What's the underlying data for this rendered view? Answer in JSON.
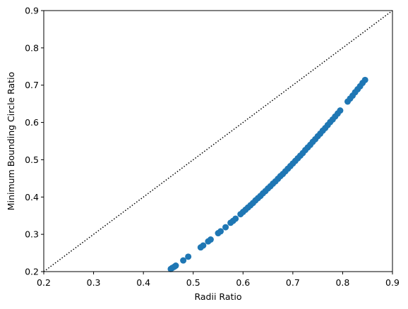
{
  "chart_data": {
    "type": "scatter",
    "xlabel": "Radii Ratio",
    "ylabel": "Minimum Bounding Circle Ratio",
    "xlim": [
      0.2,
      0.9
    ],
    "ylim": [
      0.2,
      0.9
    ],
    "xticks": [
      0.2,
      0.3,
      0.4,
      0.5,
      0.6,
      0.7,
      0.8,
      0.9
    ],
    "yticks": [
      0.2,
      0.3,
      0.4,
      0.5,
      0.6,
      0.7,
      0.8,
      0.9
    ],
    "grid": false,
    "color": "#1f77b4",
    "x": [
      0.455,
      0.458,
      0.462,
      0.465,
      0.48,
      0.49,
      0.515,
      0.52,
      0.53,
      0.535,
      0.55,
      0.555,
      0.565,
      0.575,
      0.58,
      0.585,
      0.595,
      0.6,
      0.605,
      0.61,
      0.615,
      0.62,
      0.625,
      0.63,
      0.635,
      0.64,
      0.645,
      0.65,
      0.655,
      0.66,
      0.665,
      0.67,
      0.675,
      0.68,
      0.685,
      0.69,
      0.695,
      0.7,
      0.705,
      0.71,
      0.715,
      0.72,
      0.725,
      0.73,
      0.735,
      0.74,
      0.745,
      0.75,
      0.755,
      0.76,
      0.765,
      0.77,
      0.775,
      0.78,
      0.785,
      0.79,
      0.795,
      0.81,
      0.815,
      0.82,
      0.825,
      0.83,
      0.835,
      0.84,
      0.845
    ],
    "values": [
      0.207,
      0.21,
      0.213,
      0.216,
      0.23,
      0.24,
      0.265,
      0.27,
      0.281,
      0.286,
      0.303,
      0.308,
      0.319,
      0.331,
      0.336,
      0.342,
      0.354,
      0.36,
      0.366,
      0.372,
      0.378,
      0.384,
      0.391,
      0.397,
      0.403,
      0.41,
      0.416,
      0.423,
      0.429,
      0.436,
      0.442,
      0.449,
      0.456,
      0.462,
      0.469,
      0.476,
      0.483,
      0.49,
      0.497,
      0.504,
      0.511,
      0.518,
      0.526,
      0.533,
      0.54,
      0.548,
      0.555,
      0.563,
      0.57,
      0.578,
      0.585,
      0.593,
      0.601,
      0.608,
      0.616,
      0.624,
      0.632,
      0.656,
      0.664,
      0.672,
      0.681,
      0.689,
      0.697,
      0.706,
      0.714
    ],
    "reference_line": {
      "x": [
        0.2,
        0.9
      ],
      "y": [
        0.2,
        0.9
      ],
      "color": "#000000",
      "style": "dotted"
    }
  }
}
